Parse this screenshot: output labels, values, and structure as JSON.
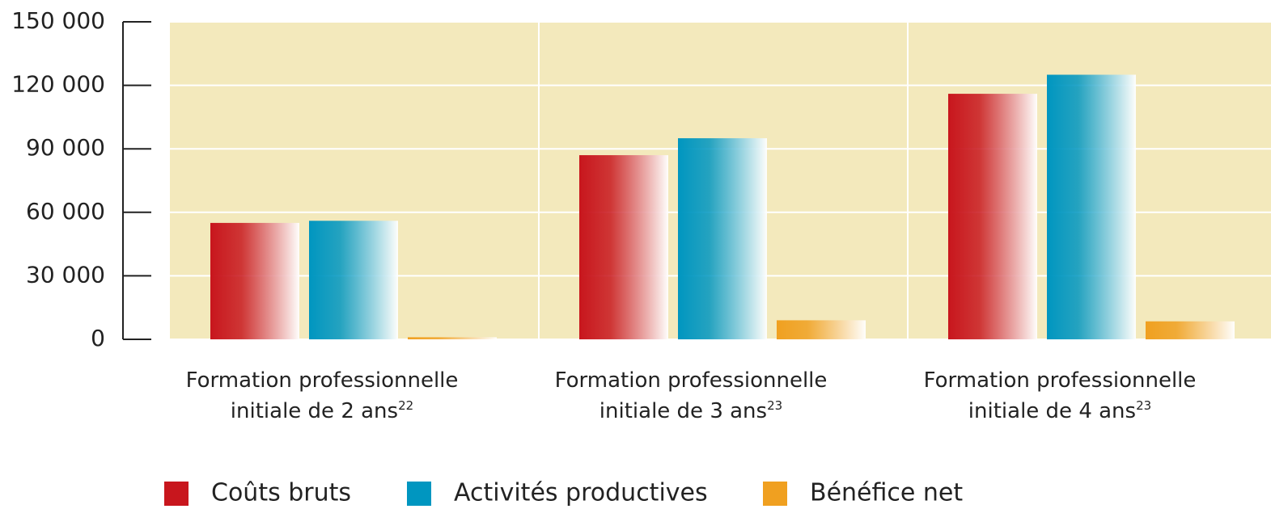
{
  "chart_data": {
    "type": "bar",
    "categories": [
      "Formation professionnelle initiale de 2 ans",
      "Formation professionnelle initiale de 3 ans",
      "Formation professionnelle initiale de 4 ans"
    ],
    "footnotes": [
      "22",
      "23",
      "23"
    ],
    "series": [
      {
        "name": "Coûts bruts",
        "color": "#c8161d",
        "values": [
          55000,
          87000,
          116000
        ]
      },
      {
        "name": "Activités productives",
        "color": "#0096c0",
        "values": [
          56000,
          95000,
          125000
        ]
      },
      {
        "name": "Bénéfice net",
        "color": "#f0a020",
        "values": [
          1000,
          9000,
          8500
        ]
      }
    ],
    "ylim": [
      0,
      150000
    ],
    "yticks": [
      0,
      {
        "value": 30000,
        "label": "30 000"
      },
      {
        "value": 60000,
        "label": "60 000"
      },
      {
        "value": 90000,
        "label": "90 000"
      },
      {
        "value": 120000,
        "label": "120 000"
      },
      {
        "value": 150000,
        "label": "150 000"
      }
    ],
    "grid": true,
    "background": "#f3e9bc",
    "legend": "bottom"
  }
}
